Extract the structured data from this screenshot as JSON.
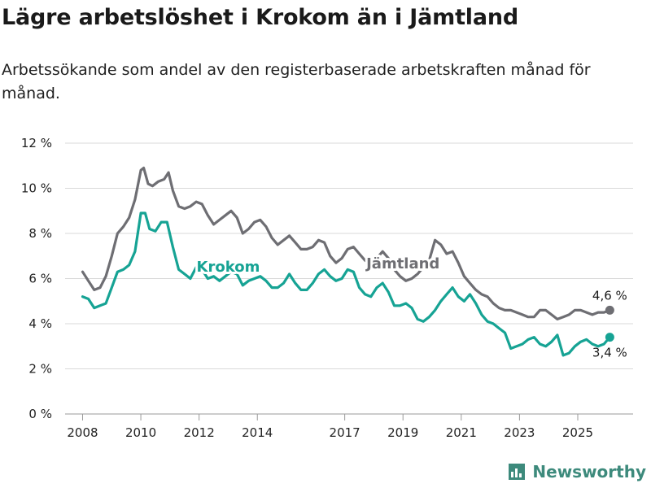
{
  "title": "Lägre arbetslöshet i Krokom än i Jämtland",
  "subtitle": "Arbetssökande som andel av den registerbaserade arbetskraften månad för månad.",
  "brand": {
    "name": "Newsworthy",
    "icon": "bar-chart-icon",
    "color": "#3d8a7c"
  },
  "chart_data": {
    "type": "line",
    "y_ticks": [
      0,
      2,
      4,
      6,
      8,
      10,
      12
    ],
    "y_tick_labels": [
      "0 %",
      "2 %",
      "4 %",
      "6 %",
      "8 %",
      "10 %",
      "12 %"
    ],
    "ylim": [
      0,
      12
    ],
    "x_ticks": [
      2008,
      2010,
      2012,
      2014,
      2017,
      2019,
      2021,
      2023,
      2025
    ],
    "x_tick_labels": [
      "2008",
      "2010",
      "2012",
      "2014",
      "2017",
      "2019",
      "2021",
      "2023",
      "2025"
    ],
    "xlim": [
      2007.4,
      2026.9
    ],
    "grid": true,
    "legend": "inline labels",
    "series": [
      {
        "name": "Jämtland",
        "color": "#6e6e73",
        "end_label": "4,6 %",
        "end_value": 4.6,
        "x": [
          2008.0,
          2008.2,
          2008.4,
          2008.6,
          2008.8,
          2009.0,
          2009.2,
          2009.4,
          2009.6,
          2009.8,
          2010.0,
          2010.1,
          2010.25,
          2010.4,
          2010.6,
          2010.8,
          2010.95,
          2011.1,
          2011.3,
          2011.5,
          2011.7,
          2011.9,
          2012.1,
          2012.3,
          2012.5,
          2012.7,
          2012.9,
          2013.1,
          2013.3,
          2013.5,
          2013.7,
          2013.9,
          2014.1,
          2014.3,
          2014.5,
          2014.7,
          2014.9,
          2015.1,
          2015.3,
          2015.5,
          2015.7,
          2015.9,
          2016.1,
          2016.3,
          2016.5,
          2016.7,
          2016.9,
          2017.1,
          2017.3,
          2017.5,
          2017.7,
          2017.9,
          2018.1,
          2018.3,
          2018.5,
          2018.7,
          2018.9,
          2019.1,
          2019.3,
          2019.5,
          2019.7,
          2019.9,
          2020.1,
          2020.3,
          2020.5,
          2020.7,
          2020.9,
          2021.1,
          2021.3,
          2021.5,
          2021.7,
          2021.9,
          2022.1,
          2022.3,
          2022.5,
          2022.7,
          2022.9,
          2023.1,
          2023.3,
          2023.5,
          2023.7,
          2023.9,
          2024.1,
          2024.3,
          2024.5,
          2024.7,
          2024.9,
          2025.1,
          2025.3,
          2025.5,
          2025.7,
          2025.9,
          2026.1
        ],
        "values": [
          6.3,
          5.9,
          5.5,
          5.6,
          6.1,
          7.0,
          8.0,
          8.3,
          8.7,
          9.5,
          10.8,
          10.9,
          10.2,
          10.1,
          10.3,
          10.4,
          10.7,
          9.9,
          9.2,
          9.1,
          9.2,
          9.4,
          9.3,
          8.8,
          8.4,
          8.6,
          8.8,
          9.0,
          8.7,
          8.0,
          8.2,
          8.5,
          8.6,
          8.3,
          7.8,
          7.5,
          7.7,
          7.9,
          7.6,
          7.3,
          7.3,
          7.4,
          7.7,
          7.6,
          7.0,
          6.7,
          6.9,
          7.3,
          7.4,
          7.1,
          6.8,
          6.6,
          6.9,
          7.2,
          6.9,
          6.4,
          6.1,
          5.9,
          6.0,
          6.2,
          6.5,
          6.8,
          7.7,
          7.5,
          7.1,
          7.2,
          6.7,
          6.1,
          5.8,
          5.5,
          5.3,
          5.2,
          4.9,
          4.7,
          4.6,
          4.6,
          4.5,
          4.4,
          4.3,
          4.3,
          4.6,
          4.6,
          4.4,
          4.2,
          4.3,
          4.4,
          4.6,
          4.6,
          4.5,
          4.4,
          4.5,
          4.5,
          4.6
        ]
      },
      {
        "name": "Krokom",
        "color": "#16a394",
        "end_label": "3,4 %",
        "end_value": 3.4,
        "x": [
          2008.0,
          2008.2,
          2008.4,
          2008.6,
          2008.8,
          2009.0,
          2009.2,
          2009.4,
          2009.6,
          2009.8,
          2010.0,
          2010.15,
          2010.3,
          2010.5,
          2010.7,
          2010.9,
          2011.1,
          2011.3,
          2011.5,
          2011.7,
          2011.9,
          2012.1,
          2012.3,
          2012.5,
          2012.7,
          2012.9,
          2013.1,
          2013.3,
          2013.5,
          2013.7,
          2013.9,
          2014.1,
          2014.3,
          2014.5,
          2014.7,
          2014.9,
          2015.1,
          2015.3,
          2015.5,
          2015.7,
          2015.9,
          2016.1,
          2016.3,
          2016.5,
          2016.7,
          2016.9,
          2017.1,
          2017.3,
          2017.5,
          2017.7,
          2017.9,
          2018.1,
          2018.3,
          2018.5,
          2018.7,
          2018.9,
          2019.1,
          2019.3,
          2019.5,
          2019.7,
          2019.9,
          2020.1,
          2020.3,
          2020.5,
          2020.7,
          2020.9,
          2021.1,
          2021.3,
          2021.5,
          2021.7,
          2021.9,
          2022.1,
          2022.3,
          2022.5,
          2022.7,
          2022.9,
          2023.1,
          2023.3,
          2023.5,
          2023.7,
          2023.9,
          2024.1,
          2024.3,
          2024.5,
          2024.7,
          2024.9,
          2025.1,
          2025.3,
          2025.5,
          2025.7,
          2025.9,
          2026.1
        ],
        "values": [
          5.2,
          5.1,
          4.7,
          4.8,
          4.9,
          5.6,
          6.3,
          6.4,
          6.6,
          7.2,
          8.9,
          8.9,
          8.2,
          8.1,
          8.5,
          8.5,
          7.4,
          6.4,
          6.2,
          6.0,
          6.5,
          6.4,
          6.0,
          6.1,
          5.9,
          6.1,
          6.3,
          6.2,
          5.7,
          5.9,
          6.0,
          6.1,
          5.9,
          5.6,
          5.6,
          5.8,
          6.2,
          5.8,
          5.5,
          5.5,
          5.8,
          6.2,
          6.4,
          6.1,
          5.9,
          6.0,
          6.4,
          6.3,
          5.6,
          5.3,
          5.2,
          5.6,
          5.8,
          5.4,
          4.8,
          4.8,
          4.9,
          4.7,
          4.2,
          4.1,
          4.3,
          4.6,
          5.0,
          5.3,
          5.6,
          5.2,
          5.0,
          5.3,
          4.9,
          4.4,
          4.1,
          4.0,
          3.8,
          3.6,
          2.9,
          3.0,
          3.1,
          3.3,
          3.4,
          3.1,
          3.0,
          3.2,
          3.5,
          2.6,
          2.7,
          3.0,
          3.2,
          3.3,
          3.1,
          3.0,
          3.1,
          3.4
        ]
      }
    ]
  }
}
